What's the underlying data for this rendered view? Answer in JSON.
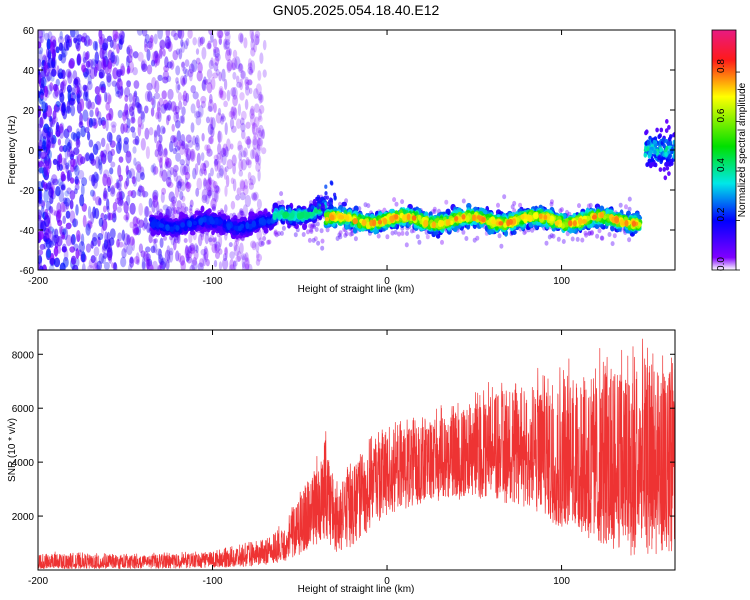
{
  "figure": {
    "title": "GN05.2025.054.18.40.E12"
  },
  "chart_data": [
    {
      "type": "heatmap",
      "name": "spectrogram",
      "xlabel": "Height of straight line (km)",
      "ylabel": "Frequency (Hz)",
      "xlim": [
        -200,
        165
      ],
      "ylim": [
        -60,
        60
      ],
      "x_ticks": [
        -200,
        -100,
        0,
        100
      ],
      "y_ticks": [
        -60,
        -40,
        -20,
        0,
        20,
        40,
        60
      ],
      "colorbar": {
        "label": "Normalized spectral amplitude",
        "range": [
          0,
          0.97
        ],
        "ticks": [
          0.0,
          0.2,
          0.4,
          0.6,
          0.8
        ],
        "colormap": [
          "#e81a82",
          "#ff1a1a",
          "#ffff00",
          "#00e000",
          "#00e8e8",
          "#0000ff",
          "#8000ff",
          "#ffffff"
        ]
      },
      "features": [
        {
          "x_range": [
            -200,
            -70
          ],
          "freq_range": [
            -60,
            60
          ],
          "amplitude": 0.05
        },
        {
          "x_range": [
            -135,
            -65
          ],
          "freq_center": -37,
          "amplitude": 0.25
        },
        {
          "x_range": [
            -65,
            -35
          ],
          "freq_center": -30,
          "amplitude": 0.45
        },
        {
          "x_range": [
            -35,
            145
          ],
          "freq_center": -35,
          "amplitude": 0.8
        },
        {
          "x_range": [
            148,
            165
          ],
          "freq_center": 0,
          "amplitude": 0.35
        }
      ]
    },
    {
      "type": "line",
      "name": "snr",
      "xlabel": "Height of straight line (km)",
      "ylabel": "SNR (10 * v/v)",
      "xlim": [
        -200,
        165
      ],
      "ylim": [
        0,
        8900
      ],
      "x_ticks": [
        -200,
        -100,
        0,
        100
      ],
      "y_ticks": [
        2000,
        4000,
        6000,
        8000
      ],
      "color": "#ee3333",
      "envelope": {
        "x": [
          -200,
          -150,
          -100,
          -75,
          -60,
          -45,
          -35,
          -30,
          -25,
          -20,
          -10,
          0,
          20,
          40,
          60,
          80,
          100,
          120,
          140,
          165
        ],
        "low": [
          50,
          50,
          80,
          150,
          300,
          700,
          1200,
          600,
          500,
          800,
          1500,
          2000,
          2500,
          2600,
          2600,
          2300,
          1500,
          1000,
          500,
          600
        ],
        "mid": [
          200,
          250,
          350,
          500,
          900,
          1900,
          3200,
          1700,
          2200,
          2600,
          3300,
          3700,
          3900,
          4100,
          4300,
          4200,
          3700,
          3400,
          3000,
          3100
        ],
        "high": [
          700,
          600,
          700,
          1100,
          1700,
          3600,
          5200,
          3100,
          3800,
          4100,
          4900,
          5400,
          5800,
          6400,
          7100,
          7400,
          7800,
          8200,
          8700,
          8300
        ]
      }
    }
  ]
}
